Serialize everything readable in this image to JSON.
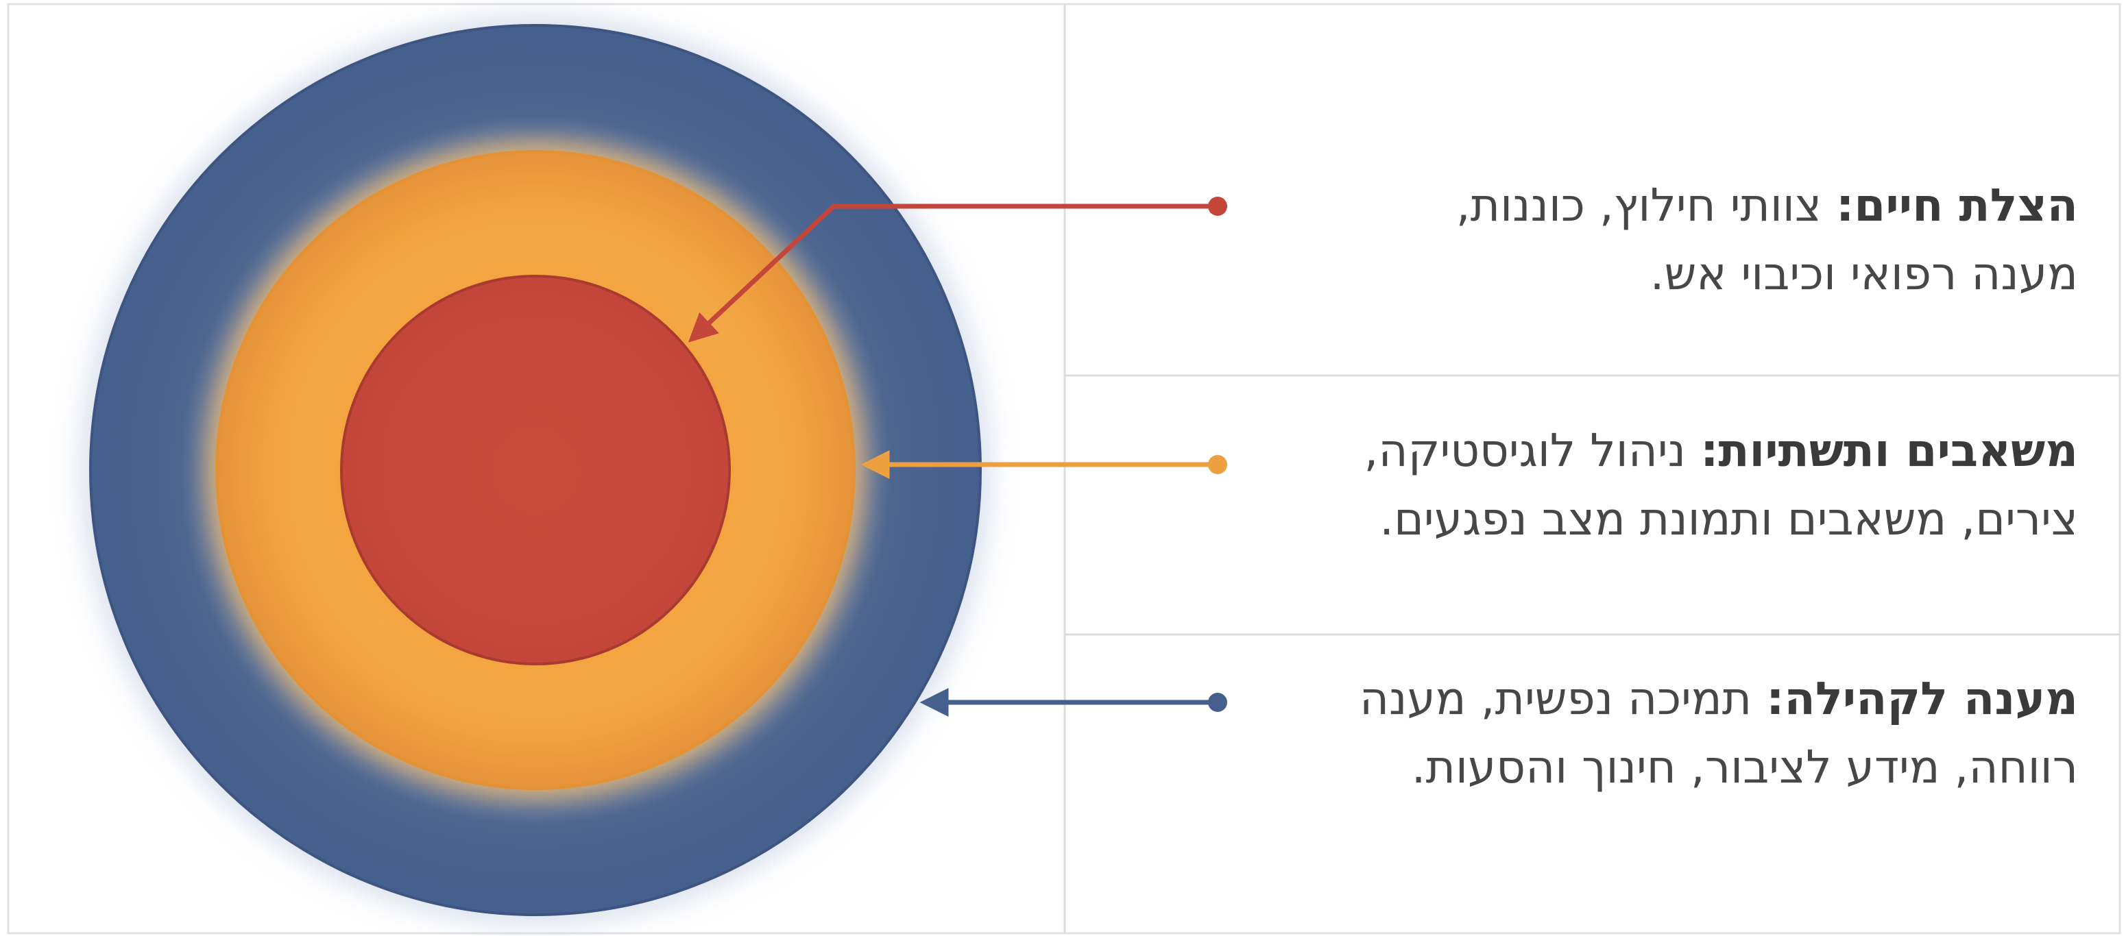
{
  "items": [
    {
      "title": "הצלת חיים:",
      "lines": [
        "צוותי חילוץ, כוננות,",
        "מענה רפואי וכיבוי אש."
      ]
    },
    {
      "title": "משאבים ותשתיות:",
      "lines": [
        "ניהול לוגיסטיקה,",
        "צירים, משאבים ותמונת מצב נפגעים."
      ]
    },
    {
      "title": "מענה לקהילה:",
      "lines": [
        "תמיכה נפשית, מענה",
        "רווחה, מידע לציבור, חינוך והסעות."
      ]
    }
  ]
}
